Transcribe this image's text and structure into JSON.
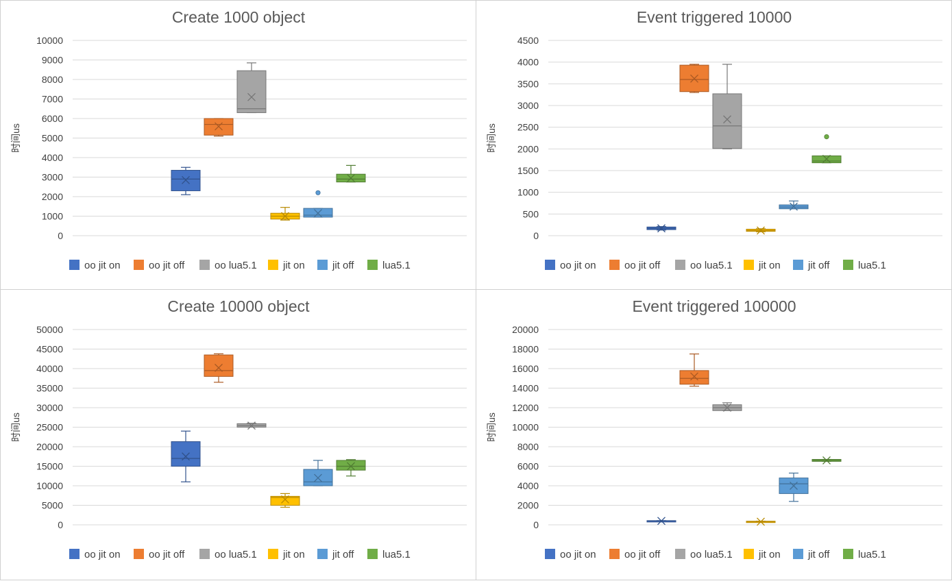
{
  "chart_data": [
    {
      "type": "box",
      "title": "Create 1000 object",
      "ylabel": "时间us",
      "ylim": [
        0,
        10000
      ],
      "yticks": [
        0,
        1000,
        2000,
        3000,
        4000,
        5000,
        6000,
        7000,
        8000,
        9000,
        10000
      ],
      "grid": true,
      "legend_position": "bottom",
      "series": [
        {
          "name": "oo jit on",
          "color": "#4472c4",
          "min": 2100,
          "q1": 2300,
          "median": 2900,
          "q3": 3350,
          "max": 3500,
          "mean": 2850,
          "outliers": []
        },
        {
          "name": "oo jit off",
          "color": "#ed7d31",
          "min": 5100,
          "q1": 5150,
          "median": 5700,
          "q3": 6000,
          "max": 6000,
          "mean": 5600,
          "outliers": []
        },
        {
          "name": "oo lua5.1",
          "color": "#a5a5a5",
          "min": 6300,
          "q1": 6300,
          "median": 6500,
          "q3": 8450,
          "max": 8850,
          "mean": 7100,
          "outliers": []
        },
        {
          "name": "jit on",
          "color": "#ffc000",
          "min": 800,
          "q1": 850,
          "median": 1000,
          "q3": 1150,
          "max": 1450,
          "mean": 1000,
          "outliers": []
        },
        {
          "name": "jit off",
          "color": "#5b9bd5",
          "min": 950,
          "q1": 950,
          "median": 1050,
          "q3": 1400,
          "max": 1400,
          "mean": 1150,
          "outliers": [
            2200
          ]
        },
        {
          "name": "lua5.1",
          "color": "#70ad47",
          "min": 2750,
          "q1": 2750,
          "median": 2900,
          "q3": 3150,
          "max": 3600,
          "mean": 2950,
          "outliers": []
        }
      ]
    },
    {
      "type": "box",
      "title": "Event triggered 10000",
      "ylabel": "时间us",
      "ylim": [
        0,
        4500
      ],
      "yticks": [
        0,
        500,
        1000,
        1500,
        2000,
        2500,
        3000,
        3500,
        4000,
        4500
      ],
      "grid": true,
      "legend_position": "bottom",
      "series": [
        {
          "name": "oo jit on",
          "color": "#4472c4",
          "min": 130,
          "q1": 140,
          "median": 170,
          "q3": 200,
          "max": 210,
          "mean": 170,
          "outliers": []
        },
        {
          "name": "oo jit off",
          "color": "#ed7d31",
          "min": 3300,
          "q1": 3320,
          "median": 3600,
          "q3": 3930,
          "max": 3950,
          "mean": 3620,
          "outliers": []
        },
        {
          "name": "oo lua5.1",
          "color": "#a5a5a5",
          "min": 2000,
          "q1": 2010,
          "median": 2530,
          "q3": 3270,
          "max": 3950,
          "mean": 2680,
          "outliers": []
        },
        {
          "name": "jit on",
          "color": "#ffc000",
          "min": 90,
          "q1": 100,
          "median": 120,
          "q3": 150,
          "max": 160,
          "mean": 120,
          "outliers": []
        },
        {
          "name": "jit off",
          "color": "#5b9bd5",
          "min": 620,
          "q1": 620,
          "median": 660,
          "q3": 710,
          "max": 800,
          "mean": 670,
          "outliers": []
        },
        {
          "name": "lua5.1",
          "color": "#70ad47",
          "min": 1680,
          "q1": 1680,
          "median": 1720,
          "q3": 1840,
          "max": 1840,
          "mean": 1770,
          "outliers": [
            2280
          ]
        }
      ]
    },
    {
      "type": "box",
      "title": "Create 10000 object",
      "ylabel": "时间us",
      "ylim": [
        0,
        50000
      ],
      "yticks": [
        0,
        5000,
        10000,
        15000,
        20000,
        25000,
        30000,
        35000,
        40000,
        45000,
        50000
      ],
      "grid": true,
      "legend_position": "bottom",
      "series": [
        {
          "name": "oo jit on",
          "color": "#4472c4",
          "min": 11000,
          "q1": 15000,
          "median": 17000,
          "q3": 21300,
          "max": 24000,
          "mean": 17500,
          "outliers": []
        },
        {
          "name": "oo jit off",
          "color": "#ed7d31",
          "min": 36500,
          "q1": 38000,
          "median": 39500,
          "q3": 43500,
          "max": 43800,
          "mean": 40200,
          "outliers": []
        },
        {
          "name": "oo lua5.1",
          "color": "#a5a5a5",
          "min": 25000,
          "q1": 25000,
          "median": 25400,
          "q3": 25900,
          "max": 26000,
          "mean": 25400,
          "outliers": []
        },
        {
          "name": "jit on",
          "color": "#ffc000",
          "min": 4500,
          "q1": 5000,
          "median": 7000,
          "q3": 7300,
          "max": 8000,
          "mean": 6500,
          "outliers": []
        },
        {
          "name": "jit off",
          "color": "#5b9bd5",
          "min": 10000,
          "q1": 10000,
          "median": 11000,
          "q3": 14200,
          "max": 16500,
          "mean": 12000,
          "outliers": []
        },
        {
          "name": "lua5.1",
          "color": "#70ad47",
          "min": 12500,
          "q1": 14000,
          "median": 15000,
          "q3": 16500,
          "max": 16700,
          "mean": 15000,
          "outliers": []
        }
      ]
    },
    {
      "type": "box",
      "title": "Event triggered 100000",
      "ylabel": "时间us",
      "ylim": [
        0,
        20000
      ],
      "yticks": [
        0,
        2000,
        4000,
        6000,
        8000,
        10000,
        12000,
        14000,
        16000,
        18000,
        20000
      ],
      "grid": true,
      "legend_position": "bottom",
      "series": [
        {
          "name": "oo jit on",
          "color": "#4472c4",
          "min": 380,
          "q1": 380,
          "median": 400,
          "q3": 430,
          "max": 430,
          "mean": 400,
          "outliers": []
        },
        {
          "name": "oo jit off",
          "color": "#ed7d31",
          "min": 14200,
          "q1": 14400,
          "median": 15000,
          "q3": 15800,
          "max": 17500,
          "mean": 15200,
          "outliers": []
        },
        {
          "name": "oo lua5.1",
          "color": "#a5a5a5",
          "min": 11700,
          "q1": 11700,
          "median": 12000,
          "q3": 12300,
          "max": 12500,
          "mean": 12000,
          "outliers": []
        },
        {
          "name": "jit on",
          "color": "#ffc000",
          "min": 250,
          "q1": 270,
          "median": 330,
          "q3": 370,
          "max": 380,
          "mean": 320,
          "outliers": []
        },
        {
          "name": "jit off",
          "color": "#5b9bd5",
          "min": 2400,
          "q1": 3200,
          "median": 4200,
          "q3": 4800,
          "max": 5300,
          "mean": 4000,
          "outliers": []
        },
        {
          "name": "lua5.1",
          "color": "#70ad47",
          "min": 6500,
          "q1": 6500,
          "median": 6600,
          "q3": 6700,
          "max": 6700,
          "mean": 6600,
          "outliers": []
        }
      ]
    }
  ]
}
